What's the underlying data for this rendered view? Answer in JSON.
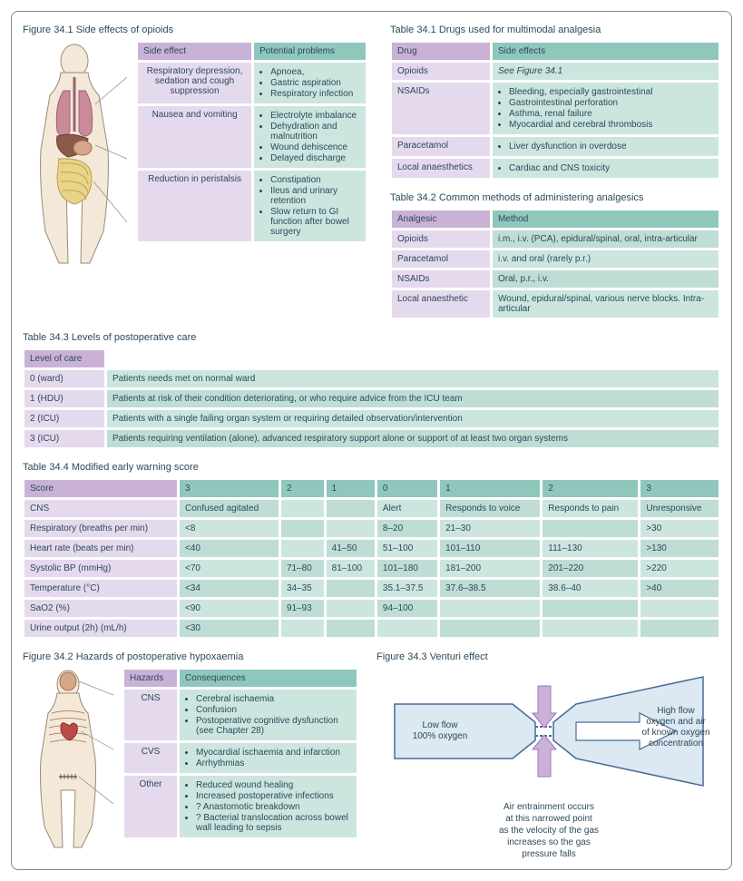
{
  "colors": {
    "header_purple": "#c9b2d6",
    "header_teal": "#8fc7bd",
    "cell_purple": "#e5d9ed",
    "cell_teal": "#cce5df",
    "text": "#2a4a5a"
  },
  "fig341": {
    "title": "Figure 34.1   Side effects of opioids",
    "headers": [
      "Side effect",
      "Potential problems"
    ],
    "rows": [
      {
        "side": "Respiratory depression, sedation and cough suppression",
        "problems": [
          "Apnoea,",
          "Gastric aspiration",
          "Respiratory infection"
        ]
      },
      {
        "side": "Nausea and vomiting",
        "problems": [
          "Electrolyte imbalance",
          "Dehydration and malnutrition",
          "Wound dehiscence",
          "Delayed discharge"
        ]
      },
      {
        "side": "Reduction in peristalsis",
        "problems": [
          "Constipation",
          "Ileus and urinary retention",
          "Slow return to GI function after bowel surgery"
        ]
      }
    ]
  },
  "tab341": {
    "title": "Table 34.1   Drugs used for multimodal analgesia",
    "headers": [
      "Drug",
      "Side effects"
    ],
    "rows": [
      {
        "drug": "Opioids",
        "effects_text": "See Figure 34.1"
      },
      {
        "drug": "NSAIDs",
        "effects": [
          "Bleeding, especially gastrointestinal",
          "Gastrointestinal perforation",
          "Asthma, renal failure",
          "Myocardial and cerebral thrombosis"
        ]
      },
      {
        "drug": "Paracetamol",
        "effects": [
          "Liver dysfunction in overdose"
        ]
      },
      {
        "drug": "Local anaesthetics",
        "effects": [
          "Cardiac and CNS toxicity"
        ]
      }
    ]
  },
  "tab342": {
    "title": "Table 34.2   Common methods of administering analgesics",
    "headers": [
      "Analgesic",
      "Method"
    ],
    "rows": [
      {
        "a": "Opioids",
        "m": "i.m., i.v. (PCA), epidural/spinal, oral, intra-articular"
      },
      {
        "a": "Paracetamol",
        "m": "i.v. and oral (rarely p.r.)"
      },
      {
        "a": "NSAIDs",
        "m": "Oral, p.r., i.v."
      },
      {
        "a": "Local anaesthetic",
        "m": "Wound, epidural/spinal, various nerve blocks. Intra-articular"
      }
    ]
  },
  "tab343": {
    "title": "Table 34.3   Levels of postoperative care",
    "header": "Level of care",
    "rows": [
      {
        "lvl": "0 (ward)",
        "desc": "Patients needs met on normal ward"
      },
      {
        "lvl": "1 (HDU)",
        "desc": "Patients at risk of their condition deteriorating, or who require advice from the ICU team"
      },
      {
        "lvl": "2 (ICU)",
        "desc": "Patients with a single failing organ system or requiring detailed observation/intervention"
      },
      {
        "lvl": "3 (ICU)",
        "desc": "Patients requiring ventilation (alone), advanced respiratory support alone or support of at least two organ systems"
      }
    ]
  },
  "tab344": {
    "title": "Table 34.4   Modified early warning score",
    "score_header": "Score",
    "score_cols": [
      "3",
      "2",
      "1",
      "0",
      "1",
      "2",
      "3"
    ],
    "rows": [
      {
        "label": "CNS",
        "vals": [
          "Confused agitated",
          "",
          "",
          "Alert",
          "Responds to voice",
          "Responds to pain",
          "Unresponsive"
        ]
      },
      {
        "label": "Respiratory (breaths per min)",
        "vals": [
          "<8",
          "",
          "",
          "8–20",
          "21–30",
          "",
          ">30"
        ]
      },
      {
        "label": "Heart rate (beats per min)",
        "vals": [
          "<40",
          "",
          "41–50",
          "51–100",
          "101–110",
          "111–130",
          ">130"
        ]
      },
      {
        "label": "Systolic BP (mmHg)",
        "vals": [
          "<70",
          "71–80",
          "81–100",
          "101–180",
          "181–200",
          "201–220",
          ">220"
        ]
      },
      {
        "label": "Temperature (°C)",
        "vals": [
          "<34",
          "34–35",
          "",
          "35.1–37.5",
          "37.6–38.5",
          "38.6–40",
          ">40"
        ]
      },
      {
        "label": "SaO2 (%)",
        "vals": [
          "<90",
          "91–93",
          "",
          "94–100",
          "",
          "",
          ""
        ]
      },
      {
        "label": "Urine output (2h) (mL/h)",
        "vals": [
          "<30",
          "",
          "",
          "",
          "",
          "",
          ""
        ]
      }
    ]
  },
  "fig342": {
    "title": "Figure 34.2   Hazards of postoperative hypoxaemia",
    "headers": [
      "Hazards",
      "Consequences"
    ],
    "rows": [
      {
        "h": "CNS",
        "c": [
          "Cerebral ischaemia",
          "Confusion",
          "Postoperative cognitive dysfunction (see Chapter 28)"
        ]
      },
      {
        "h": "CVS",
        "c": [
          "Myocardial ischaemia and infarction",
          "Arrhythmias"
        ]
      },
      {
        "h": "Other",
        "c": [
          "Reduced wound healing",
          "Increased postoperative infections",
          "? Anastomotic breakdown",
          "? Bacterial translocation across bowel wall leading  to sepsis"
        ]
      }
    ]
  },
  "fig343": {
    "title": "Figure 34.3   Venturi effect",
    "left_label1": "Low flow",
    "left_label2": "100% oxygen",
    "right_label1": "High flow",
    "right_label2": "oxygen and air",
    "right_label3": "of known oxygen",
    "right_label4": "concentration",
    "caption1": "Air entrainment occurs",
    "caption2": "at this narrowed point",
    "caption3": "as the velocity of the gas",
    "caption4": "increases so the gas",
    "caption5": "pressure falls"
  }
}
